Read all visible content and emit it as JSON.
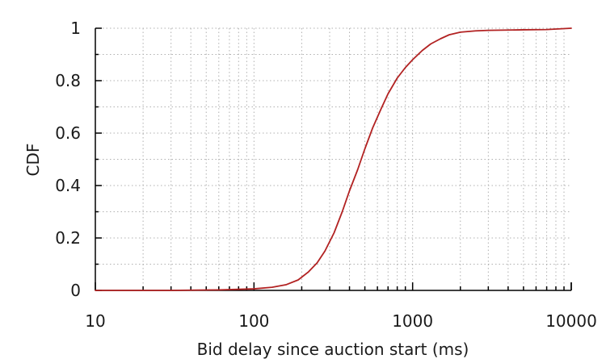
{
  "chart_data": {
    "type": "line",
    "title": "",
    "xlabel": "Bid delay since auction start (ms)",
    "ylabel": "CDF",
    "x_scale": "log",
    "xlim": [
      10,
      10000
    ],
    "ylim": [
      0,
      1
    ],
    "x_ticks": [
      10,
      100,
      1000,
      10000
    ],
    "x_tick_labels": [
      "10",
      "100",
      "1000",
      "10000"
    ],
    "y_ticks": [
      0,
      0.2,
      0.4,
      0.6,
      0.8,
      1
    ],
    "y_tick_labels": [
      "0",
      "0.2",
      "0.4",
      "0.6",
      "0.8",
      "1"
    ],
    "grid": true,
    "legend": "none",
    "series": [
      {
        "color": "#b22222",
        "x": [
          10,
          30,
          60,
          100,
          130,
          160,
          190,
          220,
          250,
          280,
          320,
          360,
          400,
          450,
          500,
          560,
          630,
          700,
          800,
          900,
          1000,
          1150,
          1300,
          1500,
          1700,
          2000,
          2500,
          3000,
          4000,
          5000,
          7000,
          10000
        ],
        "y": [
          0,
          0,
          0.002,
          0.006,
          0.012,
          0.022,
          0.04,
          0.07,
          0.105,
          0.15,
          0.22,
          0.3,
          0.38,
          0.46,
          0.54,
          0.62,
          0.69,
          0.75,
          0.81,
          0.85,
          0.88,
          0.915,
          0.94,
          0.96,
          0.975,
          0.985,
          0.99,
          0.992,
          0.993,
          0.994,
          0.995,
          1.0
        ]
      }
    ]
  }
}
